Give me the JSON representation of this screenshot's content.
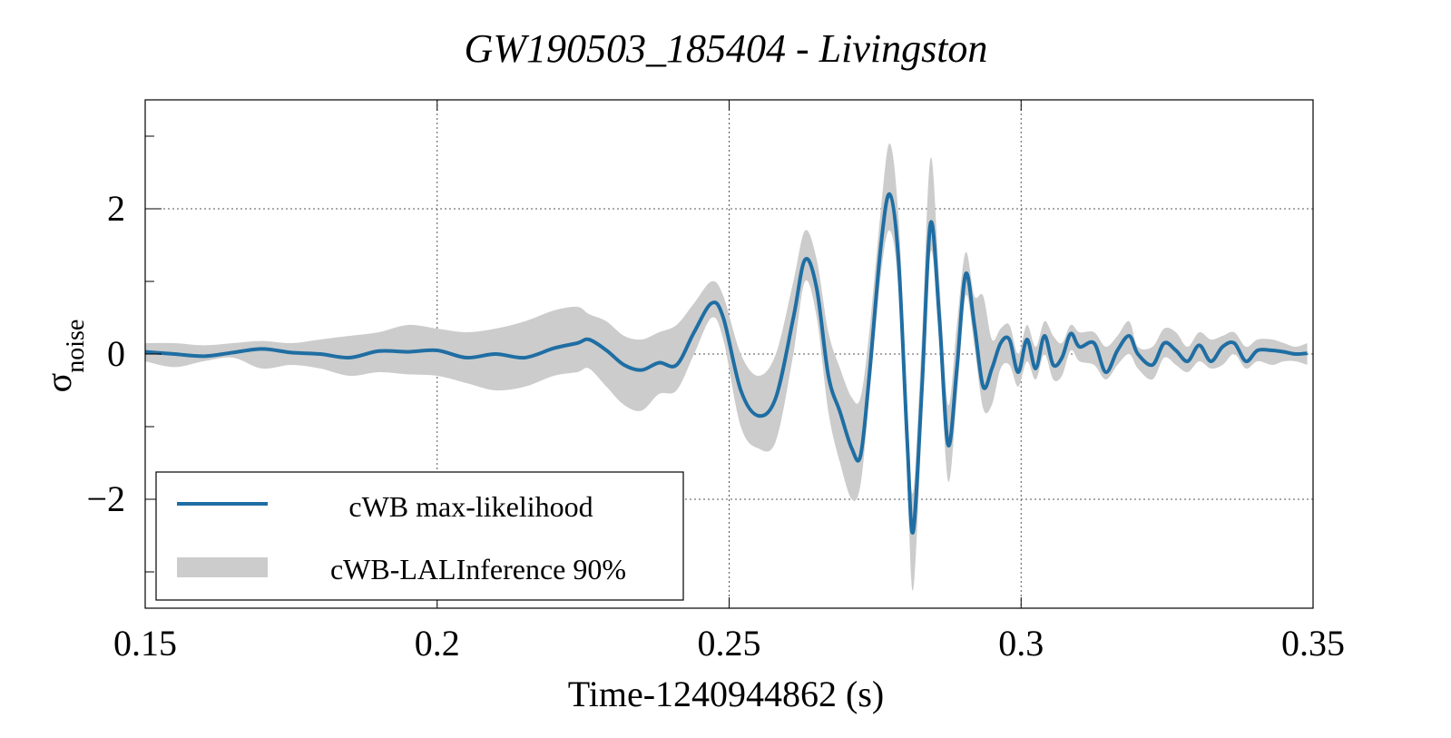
{
  "chart_data": {
    "type": "line",
    "title": "GW190503_185404 - Livingston",
    "xlabel": "Time-1240944862 (s)",
    "ylabel": "σ",
    "ylabel_sub": "noise",
    "xlim": [
      0.15,
      0.35
    ],
    "ylim": [
      -3.5,
      3.5
    ],
    "x_ticks": [
      0.15,
      0.2,
      0.25,
      0.3,
      0.35
    ],
    "x_tick_labels": [
      "0.15",
      "0.2",
      "0.25",
      "0.3",
      "0.35"
    ],
    "y_ticks": [
      -2,
      0,
      2
    ],
    "y_tick_labels": [
      "−2",
      "0",
      "2"
    ],
    "grid": true,
    "legend_position": "bottom-left",
    "colors": {
      "line": "#1f6ea3",
      "band": "#cccccc"
    },
    "series": [
      {
        "name": "cWB max-likelihood",
        "kind": "line",
        "x": [
          0.15,
          0.155,
          0.16,
          0.165,
          0.17,
          0.175,
          0.18,
          0.185,
          0.19,
          0.195,
          0.2,
          0.205,
          0.21,
          0.215,
          0.22,
          0.224,
          0.226,
          0.229,
          0.232,
          0.235,
          0.238,
          0.241,
          0.244,
          0.247,
          0.249,
          0.252,
          0.255,
          0.258,
          0.261,
          0.263,
          0.265,
          0.267,
          0.269,
          0.271,
          0.2725,
          0.274,
          0.276,
          0.2775,
          0.279,
          0.2805,
          0.2815,
          0.283,
          0.2845,
          0.286,
          0.2875,
          0.289,
          0.2905,
          0.292,
          0.2935,
          0.295,
          0.2965,
          0.298,
          0.2995,
          0.301,
          0.3025,
          0.304,
          0.3055,
          0.307,
          0.3085,
          0.31,
          0.3125,
          0.3145,
          0.3165,
          0.3185,
          0.32,
          0.3225,
          0.3245,
          0.3265,
          0.3285,
          0.3305,
          0.3325,
          0.3345,
          0.3365,
          0.3385,
          0.3405,
          0.343,
          0.345,
          0.347,
          0.349
        ],
        "y": [
          0.03,
          0.0,
          -0.03,
          0.02,
          0.07,
          0.02,
          0.0,
          -0.05,
          0.04,
          0.03,
          0.05,
          -0.05,
          0.0,
          -0.05,
          0.08,
          0.15,
          0.2,
          0.05,
          -0.15,
          -0.22,
          -0.12,
          -0.15,
          0.3,
          0.7,
          0.5,
          -0.5,
          -0.85,
          -0.6,
          0.5,
          1.3,
          0.9,
          -0.3,
          -0.8,
          -1.3,
          -1.4,
          -0.3,
          1.5,
          2.2,
          1.3,
          -1.2,
          -2.45,
          -0.5,
          1.8,
          0.5,
          -1.25,
          -0.2,
          1.1,
          0.4,
          -0.45,
          -0.2,
          0.15,
          0.2,
          -0.25,
          0.2,
          -0.2,
          0.25,
          -0.15,
          -0.05,
          0.28,
          0.1,
          0.15,
          -0.25,
          0.05,
          0.25,
          0.0,
          -0.15,
          0.15,
          0.05,
          -0.1,
          0.12,
          -0.1,
          0.1,
          0.15,
          -0.1,
          0.05,
          0.05,
          0.03,
          0.0,
          0.01
        ]
      },
      {
        "name": "cWB-LALInference 90%",
        "kind": "band",
        "x": [
          0.15,
          0.155,
          0.16,
          0.165,
          0.17,
          0.175,
          0.18,
          0.185,
          0.19,
          0.195,
          0.2,
          0.205,
          0.21,
          0.215,
          0.22,
          0.224,
          0.226,
          0.229,
          0.232,
          0.235,
          0.238,
          0.241,
          0.244,
          0.247,
          0.249,
          0.252,
          0.255,
          0.258,
          0.261,
          0.263,
          0.265,
          0.267,
          0.269,
          0.271,
          0.2725,
          0.274,
          0.276,
          0.2775,
          0.279,
          0.2805,
          0.2815,
          0.283,
          0.2845,
          0.286,
          0.2875,
          0.289,
          0.2905,
          0.292,
          0.2935,
          0.295,
          0.2965,
          0.298,
          0.2995,
          0.301,
          0.3025,
          0.304,
          0.3055,
          0.307,
          0.3085,
          0.31,
          0.3125,
          0.3145,
          0.3165,
          0.3185,
          0.32,
          0.3225,
          0.3245,
          0.3265,
          0.3285,
          0.3305,
          0.3325,
          0.3345,
          0.3365,
          0.3385,
          0.3405,
          0.343,
          0.345,
          0.347,
          0.349
        ],
        "lower": [
          -0.1,
          -0.18,
          -0.1,
          -0.05,
          -0.2,
          -0.15,
          -0.2,
          -0.3,
          -0.25,
          -0.28,
          -0.3,
          -0.4,
          -0.5,
          -0.45,
          -0.3,
          -0.25,
          -0.2,
          -0.45,
          -0.7,
          -0.78,
          -0.55,
          -0.5,
          0.0,
          0.5,
          0.2,
          -1.0,
          -1.3,
          -1.2,
          0.0,
          1.0,
          0.5,
          -0.8,
          -1.5,
          -2.0,
          -1.8,
          -0.6,
          1.1,
          1.7,
          0.9,
          -1.7,
          -3.25,
          -1.0,
          1.4,
          0.1,
          -1.75,
          -0.6,
          0.8,
          0.1,
          -0.75,
          -0.7,
          -0.2,
          -0.15,
          -0.45,
          -0.1,
          -0.35,
          0.0,
          -0.35,
          -0.3,
          0.05,
          -0.1,
          -0.15,
          -0.35,
          -0.15,
          0.0,
          -0.2,
          -0.35,
          -0.05,
          -0.15,
          -0.25,
          -0.1,
          -0.2,
          -0.15,
          0.0,
          -0.2,
          -0.1,
          -0.15,
          -0.1,
          -0.1,
          -0.15
        ],
        "upper": [
          0.15,
          0.15,
          0.12,
          0.15,
          0.18,
          0.15,
          0.2,
          0.25,
          0.3,
          0.4,
          0.35,
          0.3,
          0.35,
          0.45,
          0.6,
          0.65,
          0.55,
          0.45,
          0.25,
          0.2,
          0.3,
          0.4,
          0.7,
          1.0,
          0.8,
          0.0,
          -0.3,
          0.0,
          1.0,
          1.7,
          1.3,
          0.3,
          -0.2,
          -0.6,
          -0.6,
          0.3,
          2.0,
          2.9,
          1.9,
          -0.7,
          -1.9,
          0.2,
          2.7,
          1.0,
          -0.7,
          0.4,
          1.4,
          0.8,
          0.8,
          0.2,
          0.35,
          0.4,
          0.0,
          0.4,
          0.1,
          0.45,
          0.25,
          0.15,
          0.4,
          0.3,
          0.3,
          0.1,
          0.25,
          0.45,
          0.1,
          0.1,
          0.35,
          0.3,
          0.1,
          0.3,
          0.2,
          0.25,
          0.3,
          0.1,
          0.2,
          0.2,
          0.15,
          0.1,
          0.15
        ]
      }
    ],
    "legend": [
      {
        "label": "cWB max-likelihood",
        "kind": "line"
      },
      {
        "label": "cWB-LALInference 90%",
        "kind": "band"
      }
    ]
  }
}
